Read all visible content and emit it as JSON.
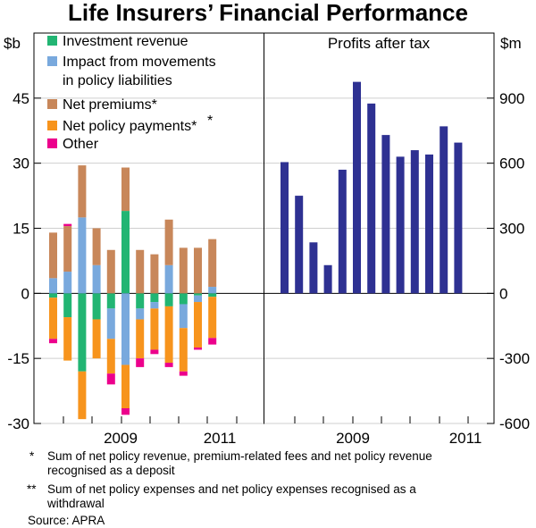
{
  "chart_data": [
    {
      "type": "bar",
      "stacked": true,
      "panel": "left",
      "title": "Life Insurers’ Financial Performance",
      "unit_label": "$b",
      "ylim": [
        -30,
        60
      ],
      "yticks": [
        -30,
        -15,
        0,
        15,
        30,
        45
      ],
      "xtick_labels": [
        "2009",
        "2011"
      ],
      "periods": 12,
      "series": [
        {
          "name": "Investment revenue",
          "color": "#22b573",
          "values": [
            -1.0,
            -5.5,
            -18.0,
            -6.0,
            -3.5,
            19.0,
            -3.5,
            -2.0,
            -3.0,
            -2.5,
            -0.5,
            -0.8
          ]
        },
        {
          "name": "Impact from movements in policy liabilities",
          "color": "#79a9dd",
          "values": [
            3.5,
            5.0,
            17.5,
            6.5,
            -7.0,
            -16.5,
            -2.5,
            -1.5,
            6.5,
            -5.5,
            -1.5,
            1.5
          ]
        },
        {
          "name": "Net premiums*",
          "color": "#c8875a",
          "values": [
            10.5,
            10.5,
            12.0,
            8.5,
            10.0,
            10.0,
            10.0,
            9.0,
            10.5,
            10.5,
            10.5,
            11.0
          ]
        },
        {
          "name": "Net policy payments**",
          "color": "#f7941d",
          "values": [
            -9.5,
            -10.0,
            -11.0,
            -9.0,
            -8.0,
            -10.0,
            -9.0,
            -9.5,
            -13.0,
            -10.0,
            -10.5,
            -9.5
          ]
        },
        {
          "name": "Other",
          "color": "#ec008c",
          "values": [
            -1.0,
            0.5,
            0.0,
            0.0,
            -2.5,
            -1.5,
            -2.0,
            -1.0,
            -1.0,
            -1.0,
            -0.5,
            -1.5
          ]
        }
      ]
    },
    {
      "type": "bar",
      "panel": "right",
      "title": "Profits after tax",
      "unit_label": "$m",
      "ylim": [
        -600,
        1200
      ],
      "yticks": [
        -600,
        -300,
        0,
        300,
        600,
        900
      ],
      "xtick_labels": [
        "2009",
        "2011"
      ],
      "color": "#2e3192",
      "values": [
        605,
        450,
        235,
        130,
        570,
        975,
        875,
        730,
        630,
        660,
        640,
        770,
        695
      ]
    }
  ],
  "legend_lines": [
    [
      "Investment revenue"
    ],
    [
      "Impact from movements",
      "in policy liabilities"
    ],
    [
      "Net premiums*"
    ],
    [
      "Net policy payments*",
      "*"
    ],
    [
      "Other"
    ]
  ],
  "footnotes": {
    "note1_marker": "*",
    "note1_line1": "Sum of net policy revenue, premium-related fees and net policy revenue",
    "note1_line2": "recognised as a deposit",
    "note2_marker": "**",
    "note2_line1": "Sum of net policy expenses and net policy expenses recognised as a",
    "note2_line2": "withdrawal",
    "source": "Source: APRA"
  }
}
